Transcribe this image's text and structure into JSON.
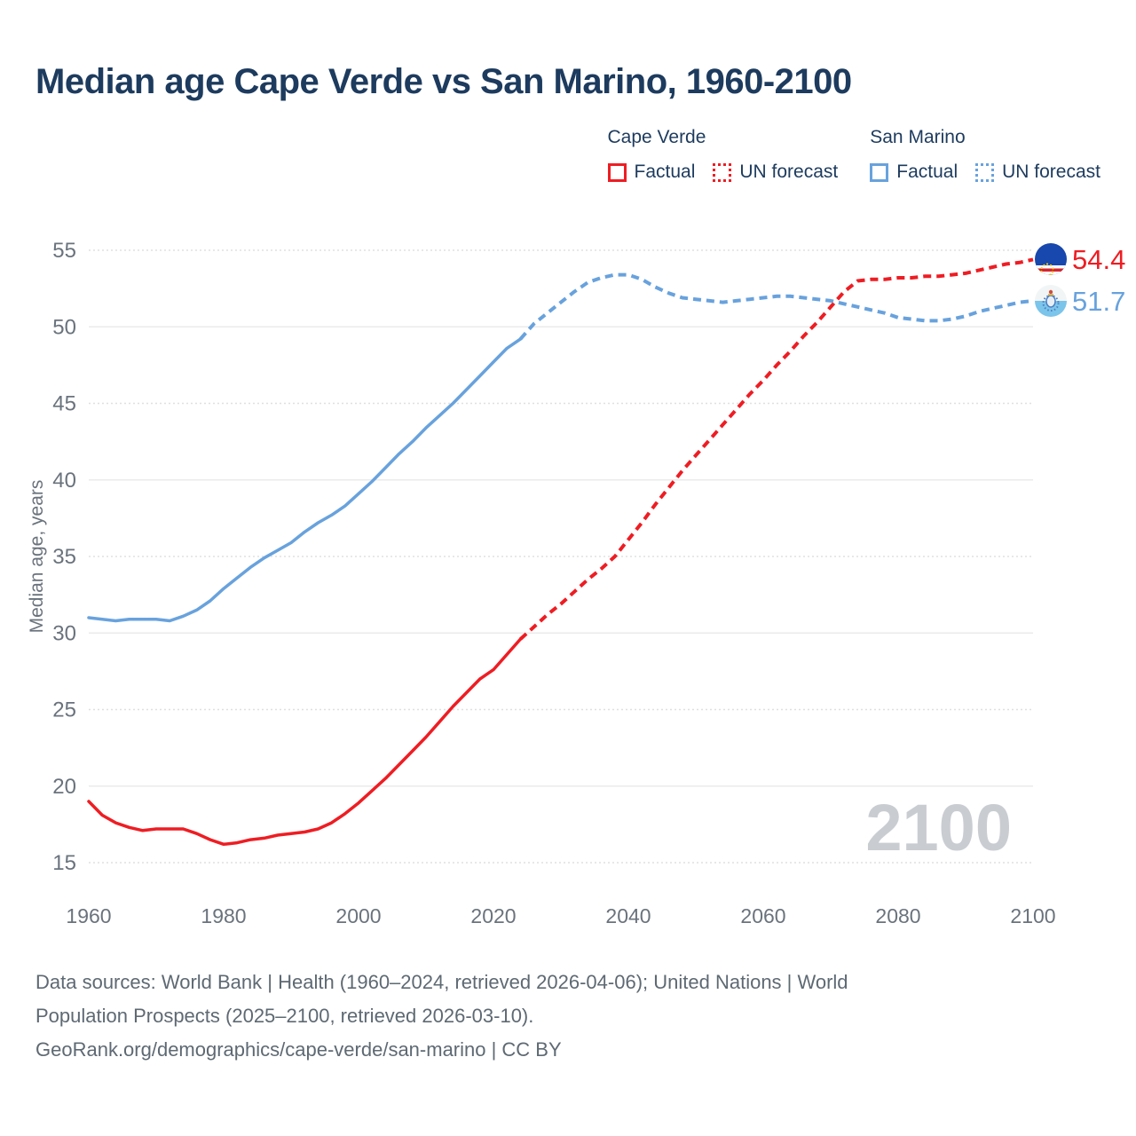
{
  "title": "Median age Cape Verde vs San Marino, 1960-2100",
  "legend": {
    "groups": [
      {
        "name": "Cape Verde",
        "color": "#ee1d23",
        "items": [
          {
            "label": "Factual",
            "style": "solid"
          },
          {
            "label": "UN forecast",
            "style": "dotted"
          }
        ]
      },
      {
        "name": "San Marino",
        "color": "#68a2dd",
        "items": [
          {
            "label": "Factual",
            "style": "solid"
          },
          {
            "label": "UN forecast",
            "style": "dotted"
          }
        ]
      }
    ]
  },
  "chart_data": {
    "type": "line",
    "title": "Median age Cape Verde vs San Marino, 1960-2100",
    "xlabel": "",
    "ylabel": "Median age, years",
    "watermark": "2100",
    "x_axis": {
      "min": 1960,
      "max": 2100,
      "ticks": [
        1960,
        1980,
        2000,
        2020,
        2040,
        2060,
        2080,
        2100
      ]
    },
    "y_axis": {
      "min": 15,
      "max": 55,
      "ticks": [
        15,
        20,
        25,
        30,
        35,
        40,
        45,
        50,
        55
      ],
      "label": "Median age, years"
    },
    "grid": "on",
    "legend_position": "top-right",
    "series": [
      {
        "id": "cape-verde-factual",
        "name": "Cape Verde — Factual",
        "color": "#ee1d23",
        "style": "solid",
        "points": [
          [
            1960,
            19.0
          ],
          [
            1962,
            18.1
          ],
          [
            1964,
            17.6
          ],
          [
            1966,
            17.3
          ],
          [
            1968,
            17.1
          ],
          [
            1970,
            17.2
          ],
          [
            1972,
            17.2
          ],
          [
            1974,
            17.2
          ],
          [
            1976,
            16.9
          ],
          [
            1978,
            16.5
          ],
          [
            1980,
            16.2
          ],
          [
            1982,
            16.3
          ],
          [
            1984,
            16.5
          ],
          [
            1986,
            16.6
          ],
          [
            1988,
            16.8
          ],
          [
            1990,
            16.9
          ],
          [
            1992,
            17.0
          ],
          [
            1994,
            17.2
          ],
          [
            1996,
            17.6
          ],
          [
            1998,
            18.2
          ],
          [
            2000,
            18.9
          ],
          [
            2002,
            19.7
          ],
          [
            2004,
            20.5
          ],
          [
            2006,
            21.4
          ],
          [
            2008,
            22.3
          ],
          [
            2010,
            23.2
          ],
          [
            2012,
            24.2
          ],
          [
            2014,
            25.2
          ],
          [
            2016,
            26.1
          ],
          [
            2018,
            27.0
          ],
          [
            2020,
            27.6
          ],
          [
            2022,
            28.6
          ],
          [
            2024,
            29.6
          ]
        ]
      },
      {
        "id": "cape-verde-forecast",
        "name": "Cape Verde — UN forecast",
        "color": "#ee1d23",
        "style": "dashed",
        "points": [
          [
            2024,
            29.6
          ],
          [
            2026,
            30.4
          ],
          [
            2028,
            31.2
          ],
          [
            2030,
            31.9
          ],
          [
            2032,
            32.7
          ],
          [
            2034,
            33.5
          ],
          [
            2036,
            34.2
          ],
          [
            2038,
            35.0
          ],
          [
            2040,
            36.1
          ],
          [
            2042,
            37.2
          ],
          [
            2044,
            38.4
          ],
          [
            2046,
            39.5
          ],
          [
            2048,
            40.6
          ],
          [
            2050,
            41.6
          ],
          [
            2052,
            42.6
          ],
          [
            2054,
            43.6
          ],
          [
            2056,
            44.6
          ],
          [
            2058,
            45.6
          ],
          [
            2060,
            46.5
          ],
          [
            2062,
            47.5
          ],
          [
            2064,
            48.4
          ],
          [
            2066,
            49.4
          ],
          [
            2068,
            50.3
          ],
          [
            2070,
            51.3
          ],
          [
            2072,
            52.3
          ],
          [
            2074,
            53.0
          ],
          [
            2076,
            53.1
          ],
          [
            2078,
            53.1
          ],
          [
            2080,
            53.2
          ],
          [
            2082,
            53.2
          ],
          [
            2084,
            53.3
          ],
          [
            2086,
            53.3
          ],
          [
            2088,
            53.4
          ],
          [
            2090,
            53.5
          ],
          [
            2092,
            53.7
          ],
          [
            2094,
            53.9
          ],
          [
            2096,
            54.1
          ],
          [
            2098,
            54.2
          ],
          [
            2100,
            54.4
          ]
        ]
      },
      {
        "id": "san-marino-factual",
        "name": "San Marino — Factual",
        "color": "#68a2dd",
        "style": "solid",
        "points": [
          [
            1960,
            31.0
          ],
          [
            1962,
            30.9
          ],
          [
            1964,
            30.8
          ],
          [
            1966,
            30.9
          ],
          [
            1968,
            30.9
          ],
          [
            1970,
            30.9
          ],
          [
            1972,
            30.8
          ],
          [
            1974,
            31.1
          ],
          [
            1976,
            31.5
          ],
          [
            1978,
            32.1
          ],
          [
            1980,
            32.9
          ],
          [
            1982,
            33.6
          ],
          [
            1984,
            34.3
          ],
          [
            1986,
            34.9
          ],
          [
            1988,
            35.4
          ],
          [
            1990,
            35.9
          ],
          [
            1992,
            36.6
          ],
          [
            1994,
            37.2
          ],
          [
            1996,
            37.7
          ],
          [
            1998,
            38.3
          ],
          [
            2000,
            39.1
          ],
          [
            2002,
            39.9
          ],
          [
            2004,
            40.8
          ],
          [
            2006,
            41.7
          ],
          [
            2008,
            42.5
          ],
          [
            2010,
            43.4
          ],
          [
            2012,
            44.2
          ],
          [
            2014,
            45.0
          ],
          [
            2016,
            45.9
          ],
          [
            2018,
            46.8
          ],
          [
            2020,
            47.7
          ],
          [
            2022,
            48.6
          ],
          [
            2024,
            49.2
          ]
        ]
      },
      {
        "id": "san-marino-forecast",
        "name": "San Marino — UN forecast",
        "color": "#68a2dd",
        "style": "dashed",
        "points": [
          [
            2024,
            49.2
          ],
          [
            2026,
            50.2
          ],
          [
            2028,
            50.9
          ],
          [
            2030,
            51.6
          ],
          [
            2032,
            52.3
          ],
          [
            2034,
            52.9
          ],
          [
            2036,
            53.2
          ],
          [
            2038,
            53.4
          ],
          [
            2040,
            53.4
          ],
          [
            2042,
            53.1
          ],
          [
            2044,
            52.6
          ],
          [
            2046,
            52.2
          ],
          [
            2048,
            51.9
          ],
          [
            2050,
            51.8
          ],
          [
            2052,
            51.7
          ],
          [
            2054,
            51.6
          ],
          [
            2056,
            51.7
          ],
          [
            2058,
            51.8
          ],
          [
            2060,
            51.9
          ],
          [
            2062,
            52.0
          ],
          [
            2064,
            52.0
          ],
          [
            2066,
            51.9
          ],
          [
            2068,
            51.8
          ],
          [
            2070,
            51.7
          ],
          [
            2072,
            51.5
          ],
          [
            2074,
            51.3
          ],
          [
            2076,
            51.1
          ],
          [
            2078,
            50.9
          ],
          [
            2080,
            50.6
          ],
          [
            2082,
            50.5
          ],
          [
            2084,
            50.4
          ],
          [
            2086,
            50.4
          ],
          [
            2088,
            50.5
          ],
          [
            2090,
            50.7
          ],
          [
            2092,
            51.0
          ],
          [
            2094,
            51.2
          ],
          [
            2096,
            51.4
          ],
          [
            2098,
            51.6
          ],
          [
            2100,
            51.7
          ]
        ]
      }
    ],
    "end_labels": [
      {
        "series": "Cape Verde",
        "value": "54.4",
        "color": "#ee1d23",
        "flag": "cape-verde"
      },
      {
        "series": "San Marino",
        "value": "51.7",
        "color": "#68a2dd",
        "flag": "san-marino"
      }
    ]
  },
  "footer": {
    "lines": [
      "Data sources: World Bank | Health (1960–2024, retrieved 2026-04-06); United Nations | World",
      "Population Prospects (2025–2100, retrieved 2026-03-10).",
      "GeoRank.org/demographics/cape-verde/san-marino | CC BY"
    ]
  }
}
